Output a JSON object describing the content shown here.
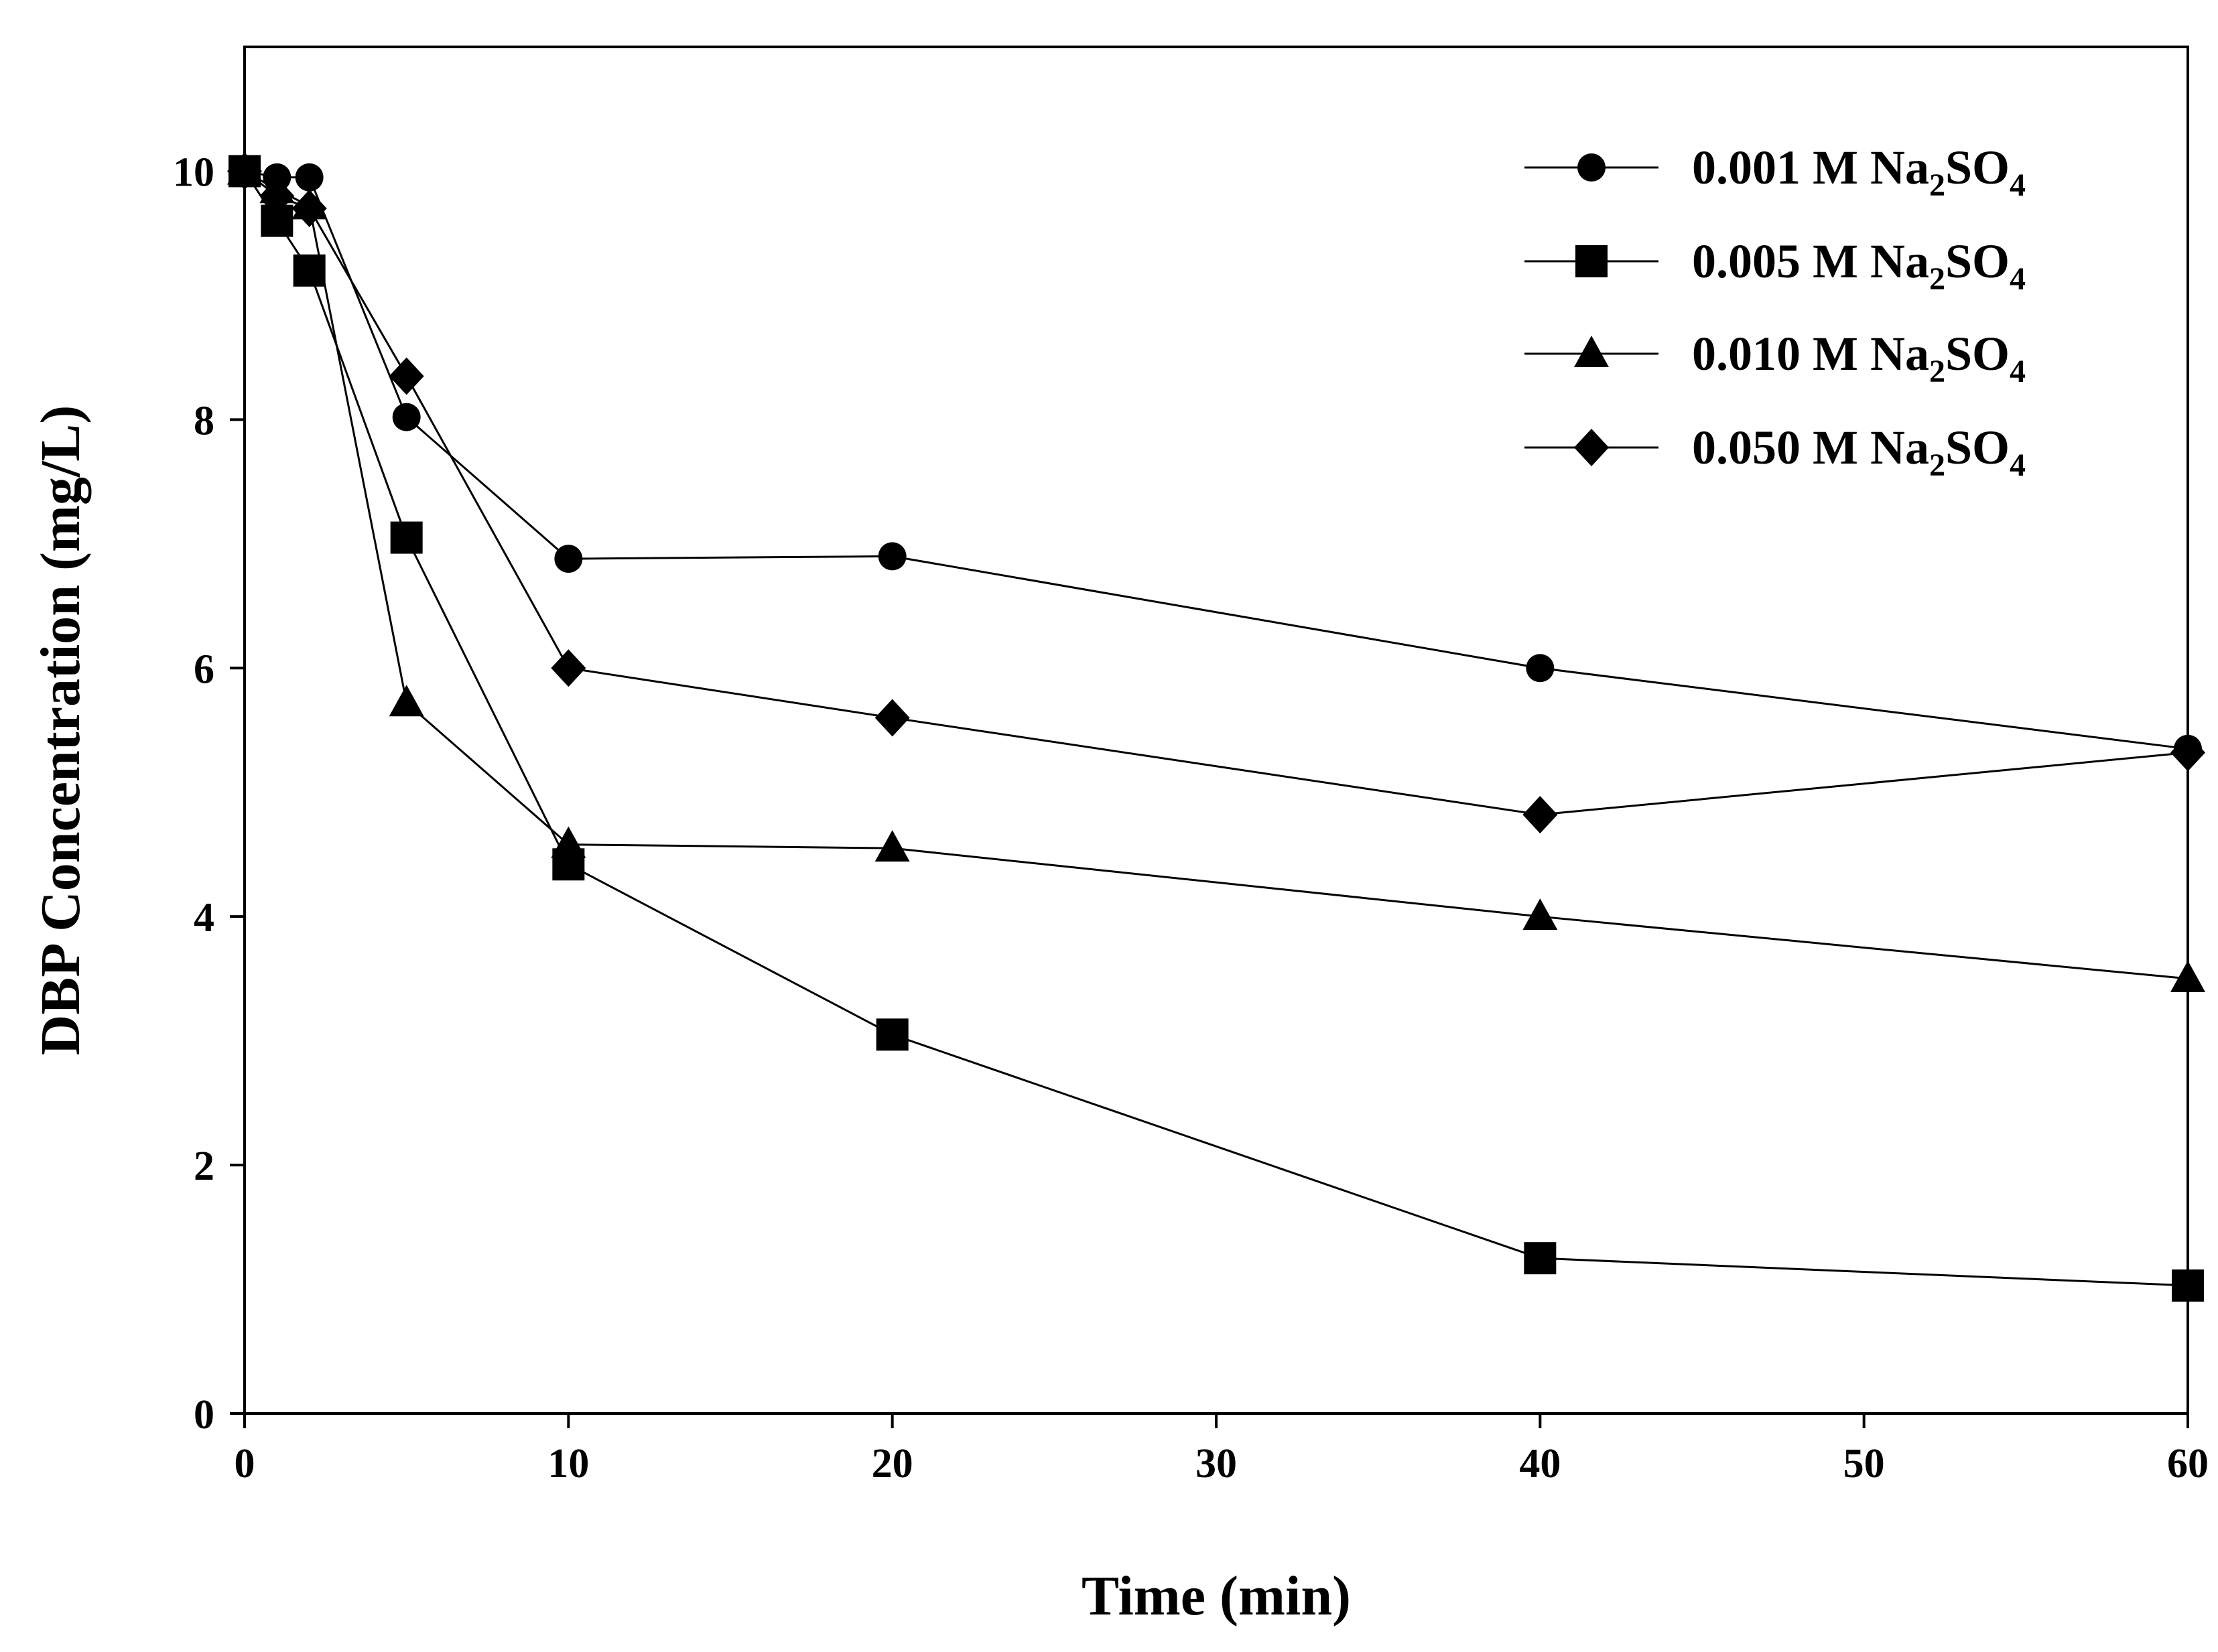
{
  "chart_data": {
    "type": "line",
    "title": "",
    "xlabel": "Time (min)",
    "ylabel": "DBP Concentration (mg/L)",
    "xlim": [
      0,
      60
    ],
    "ylim": [
      0,
      11
    ],
    "xticks": [
      0,
      10,
      20,
      30,
      40,
      50,
      60
    ],
    "yticks": [
      0,
      2,
      4,
      6,
      8,
      10
    ],
    "x": [
      0,
      1,
      2,
      5,
      10,
      20,
      40,
      60
    ],
    "grid": false,
    "legend_position": "top-right",
    "colors": {
      "line": "#000000",
      "marker": "#000000",
      "axis": "#000000",
      "background": "#ffffff"
    },
    "series": [
      {
        "name": "0.001 M Na2SO4",
        "label_main": "0.001 M Na",
        "sub1": "2",
        "label_mid": "SO",
        "sub2": "4",
        "marker": "circle",
        "values": [
          10.0,
          9.95,
          9.95,
          8.02,
          6.88,
          6.9,
          6.0,
          5.35
        ]
      },
      {
        "name": "0.005 M Na2SO4",
        "label_main": "0.005 M Na",
        "sub1": "2",
        "label_mid": "SO",
        "sub2": "4",
        "marker": "square",
        "values": [
          10.0,
          9.6,
          9.2,
          7.05,
          4.42,
          3.05,
          1.25,
          1.03
        ]
      },
      {
        "name": "0.010 M Na2SO4",
        "label_main": "0.010 M Na",
        "sub1": "2",
        "label_mid": "SO",
        "sub2": "4",
        "marker": "triangle",
        "values": [
          10.0,
          9.85,
          9.72,
          5.72,
          4.58,
          4.55,
          4.0,
          3.5
        ]
      },
      {
        "name": "0.050 M Na2SO4",
        "label_main": "0.050 M Na",
        "sub1": "2",
        "label_mid": "SO",
        "sub2": "4",
        "marker": "diamond",
        "values": [
          10.0,
          9.8,
          9.7,
          8.35,
          6.0,
          5.6,
          4.82,
          5.32
        ]
      }
    ]
  }
}
